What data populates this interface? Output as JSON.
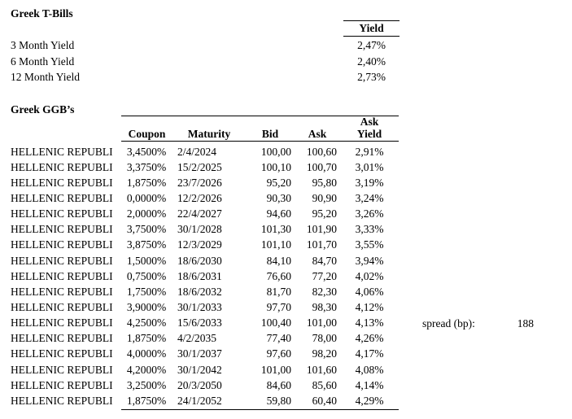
{
  "page": {
    "background": "#ffffff",
    "text_color": "#000000",
    "rule_color": "#000000"
  },
  "tbills": {
    "title": "Greek T-Bills",
    "yield_header": "Yield",
    "rows": [
      {
        "label": "3 Month Yield",
        "value": "2,47%"
      },
      {
        "label": "6 Month Yield",
        "value": "2,40%"
      },
      {
        "label": "12 Month Yield",
        "value": "2,73%"
      }
    ]
  },
  "ggb": {
    "title": "Greek GGB’s",
    "headers": {
      "coupon": "Coupon",
      "maturity": "Maturity",
      "bid": "Bid",
      "ask": "Ask",
      "ask_yield_line1": "Ask",
      "ask_yield_line2": "Yield"
    },
    "rows": [
      {
        "name": "HELLENIC REPUBLI",
        "coupon": "3,4500%",
        "maturity": "2/4/2024",
        "bid": "100,00",
        "ask": "100,60",
        "ask_yield": "2,91%"
      },
      {
        "name": "HELLENIC REPUBLI",
        "coupon": "3,3750%",
        "maturity": "15/2/2025",
        "bid": "100,10",
        "ask": "100,70",
        "ask_yield": "3,01%"
      },
      {
        "name": "HELLENIC REPUBLI",
        "coupon": "1,8750%",
        "maturity": "23/7/2026",
        "bid": "95,20",
        "ask": "95,80",
        "ask_yield": "3,19%"
      },
      {
        "name": "HELLENIC REPUBLI",
        "coupon": "0,0000%",
        "maturity": "12/2/2026",
        "bid": "90,30",
        "ask": "90,90",
        "ask_yield": "3,24%"
      },
      {
        "name": "HELLENIC REPUBLI",
        "coupon": "2,0000%",
        "maturity": "22/4/2027",
        "bid": "94,60",
        "ask": "95,20",
        "ask_yield": "3,26%"
      },
      {
        "name": "HELLENIC REPUBLI",
        "coupon": "3,7500%",
        "maturity": "30/1/2028",
        "bid": "101,30",
        "ask": "101,90",
        "ask_yield": "3,33%"
      },
      {
        "name": "HELLENIC REPUBLI",
        "coupon": "3,8750%",
        "maturity": "12/3/2029",
        "bid": "101,10",
        "ask": "101,70",
        "ask_yield": "3,55%"
      },
      {
        "name": "HELLENIC REPUBLI",
        "coupon": "1,5000%",
        "maturity": "18/6/2030",
        "bid": "84,10",
        "ask": "84,70",
        "ask_yield": "3,94%"
      },
      {
        "name": "HELLENIC REPUBLI",
        "coupon": "0,7500%",
        "maturity": "18/6/2031",
        "bid": "76,60",
        "ask": "77,20",
        "ask_yield": "4,02%"
      },
      {
        "name": "HELLENIC REPUBLI",
        "coupon": "1,7500%",
        "maturity": "18/6/2032",
        "bid": "81,70",
        "ask": "82,30",
        "ask_yield": "4,06%"
      },
      {
        "name": "HELLENIC REPUBLI",
        "coupon": "3,9000%",
        "maturity": "30/1/2033",
        "bid": "97,70",
        "ask": "98,30",
        "ask_yield": "4,12%"
      },
      {
        "name": "HELLENIC REPUBLI",
        "coupon": "4,2500%",
        "maturity": "15/6/2033",
        "bid": "100,40",
        "ask": "101,00",
        "ask_yield": "4,13%"
      },
      {
        "name": "HELLENIC REPUBLI",
        "coupon": "1,8750%",
        "maturity": "4/2/2035",
        "bid": "77,40",
        "ask": "78,00",
        "ask_yield": "4,26%"
      },
      {
        "name": "HELLENIC REPUBLI",
        "coupon": "4,0000%",
        "maturity": "30/1/2037",
        "bid": "97,60",
        "ask": "98,20",
        "ask_yield": "4,17%"
      },
      {
        "name": "HELLENIC REPUBLI",
        "coupon": "4,2000%",
        "maturity": "30/1/2042",
        "bid": "101,00",
        "ask": "101,60",
        "ask_yield": "4,08%"
      },
      {
        "name": "HELLENIC REPUBLI",
        "coupon": "3,2500%",
        "maturity": "20/3/2050",
        "bid": "84,60",
        "ask": "85,60",
        "ask_yield": "4,14%"
      },
      {
        "name": "HELLENIC REPUBLI",
        "coupon": "1,8750%",
        "maturity": "24/1/2052",
        "bid": "59,80",
        "ask": "60,40",
        "ask_yield": "4,29%"
      }
    ]
  },
  "spread": {
    "label": "spread (bp):",
    "value": "188"
  }
}
